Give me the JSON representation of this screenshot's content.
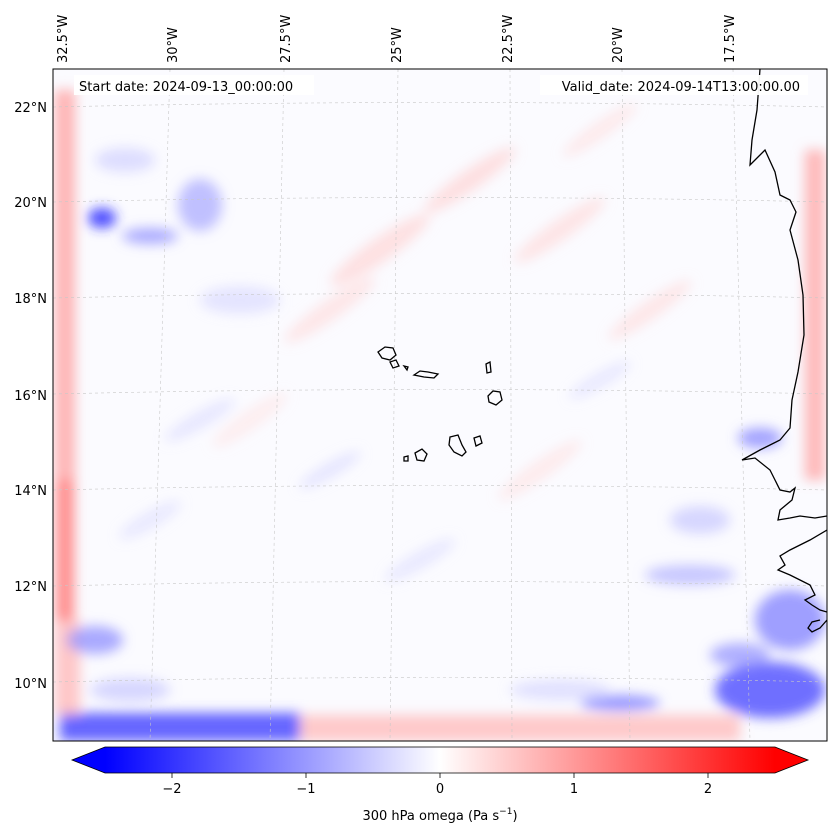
{
  "map": {
    "start_date": "Start date: 2024-09-13_00:00:00",
    "valid_date": "Valid_date: 2024-09-14T13:00:00.00",
    "lon_labels": [
      "32.5°W",
      "30°W",
      "27.5°W",
      "25°W",
      "22.5°W",
      "20°W",
      "17.5°W"
    ],
    "lat_labels": [
      "22°N",
      "20°N",
      "18°N",
      "16°N",
      "14°N",
      "12°N",
      "10°N"
    ],
    "colors": {
      "negative": "#0000ff",
      "neutral": "#ffffff",
      "positive": "#ff0000",
      "coastline": "#000000",
      "gridline": "#c8c8c8"
    }
  },
  "colorbar": {
    "tick_labels": [
      "−2",
      "−1",
      "0",
      "1",
      "2"
    ],
    "tick_values": [
      -2,
      -1,
      0,
      1,
      2
    ],
    "range": [
      -2.5,
      2.5
    ],
    "extend": "both",
    "label_main": "300 hPa omega (Pa s",
    "label_sup": "−1",
    "label_end": ")"
  }
}
